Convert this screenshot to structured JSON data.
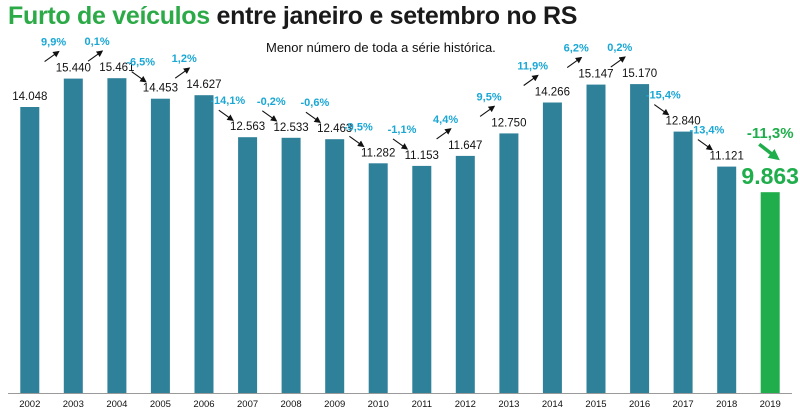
{
  "title": {
    "highlight": "Furto de veículos",
    "rest": "entre janeiro e setembro no RS"
  },
  "chart_data": {
    "type": "bar",
    "title": "Furto de veículos entre janeiro e setembro no RS",
    "annotation": "Menor número de toda a série histórica.",
    "categories": [
      "2002",
      "2003",
      "2004",
      "2005",
      "2006",
      "2007",
      "2008",
      "2009",
      "2010",
      "2011",
      "2012",
      "2013",
      "2014",
      "2015",
      "2016",
      "2017",
      "2018",
      "2019"
    ],
    "values": [
      14048,
      15440,
      15461,
      14453,
      14627,
      12563,
      12533,
      12463,
      11282,
      11153,
      11647,
      12750,
      14266,
      15147,
      15170,
      12840,
      11121,
      9863
    ],
    "value_labels": [
      "14.048",
      "15.440",
      "15.461",
      "14.453",
      "14.627",
      "12.563",
      "12.533",
      "12.463",
      "11.282",
      "11.153",
      "11.647",
      "12.750",
      "14.266",
      "15.147",
      "15.170",
      "12.840",
      "11.121",
      "9.863"
    ],
    "pct_labels": [
      "",
      "9,9%",
      "0,1%",
      "-6,5%",
      "1,2%",
      "-14,1%",
      "-0,2%",
      "-0,6%",
      "-9,5%",
      "-1,1%",
      "4,4%",
      "9,5%",
      "11,9%",
      "6,2%",
      "0,2%",
      "-15,4%",
      "-13,4%",
      "-11,3%"
    ],
    "ylim": [
      0,
      16600
    ],
    "xlabel": "",
    "ylabel": "",
    "grid": false,
    "highlight_index": 17,
    "colors": {
      "bar": "#2f8199",
      "highlight_bar": "#1fae4b",
      "pct_text": "#1aa7d4",
      "highlight_text": "#1fae4b",
      "arrow": "#111111",
      "axis": "#9a9a9a"
    }
  }
}
